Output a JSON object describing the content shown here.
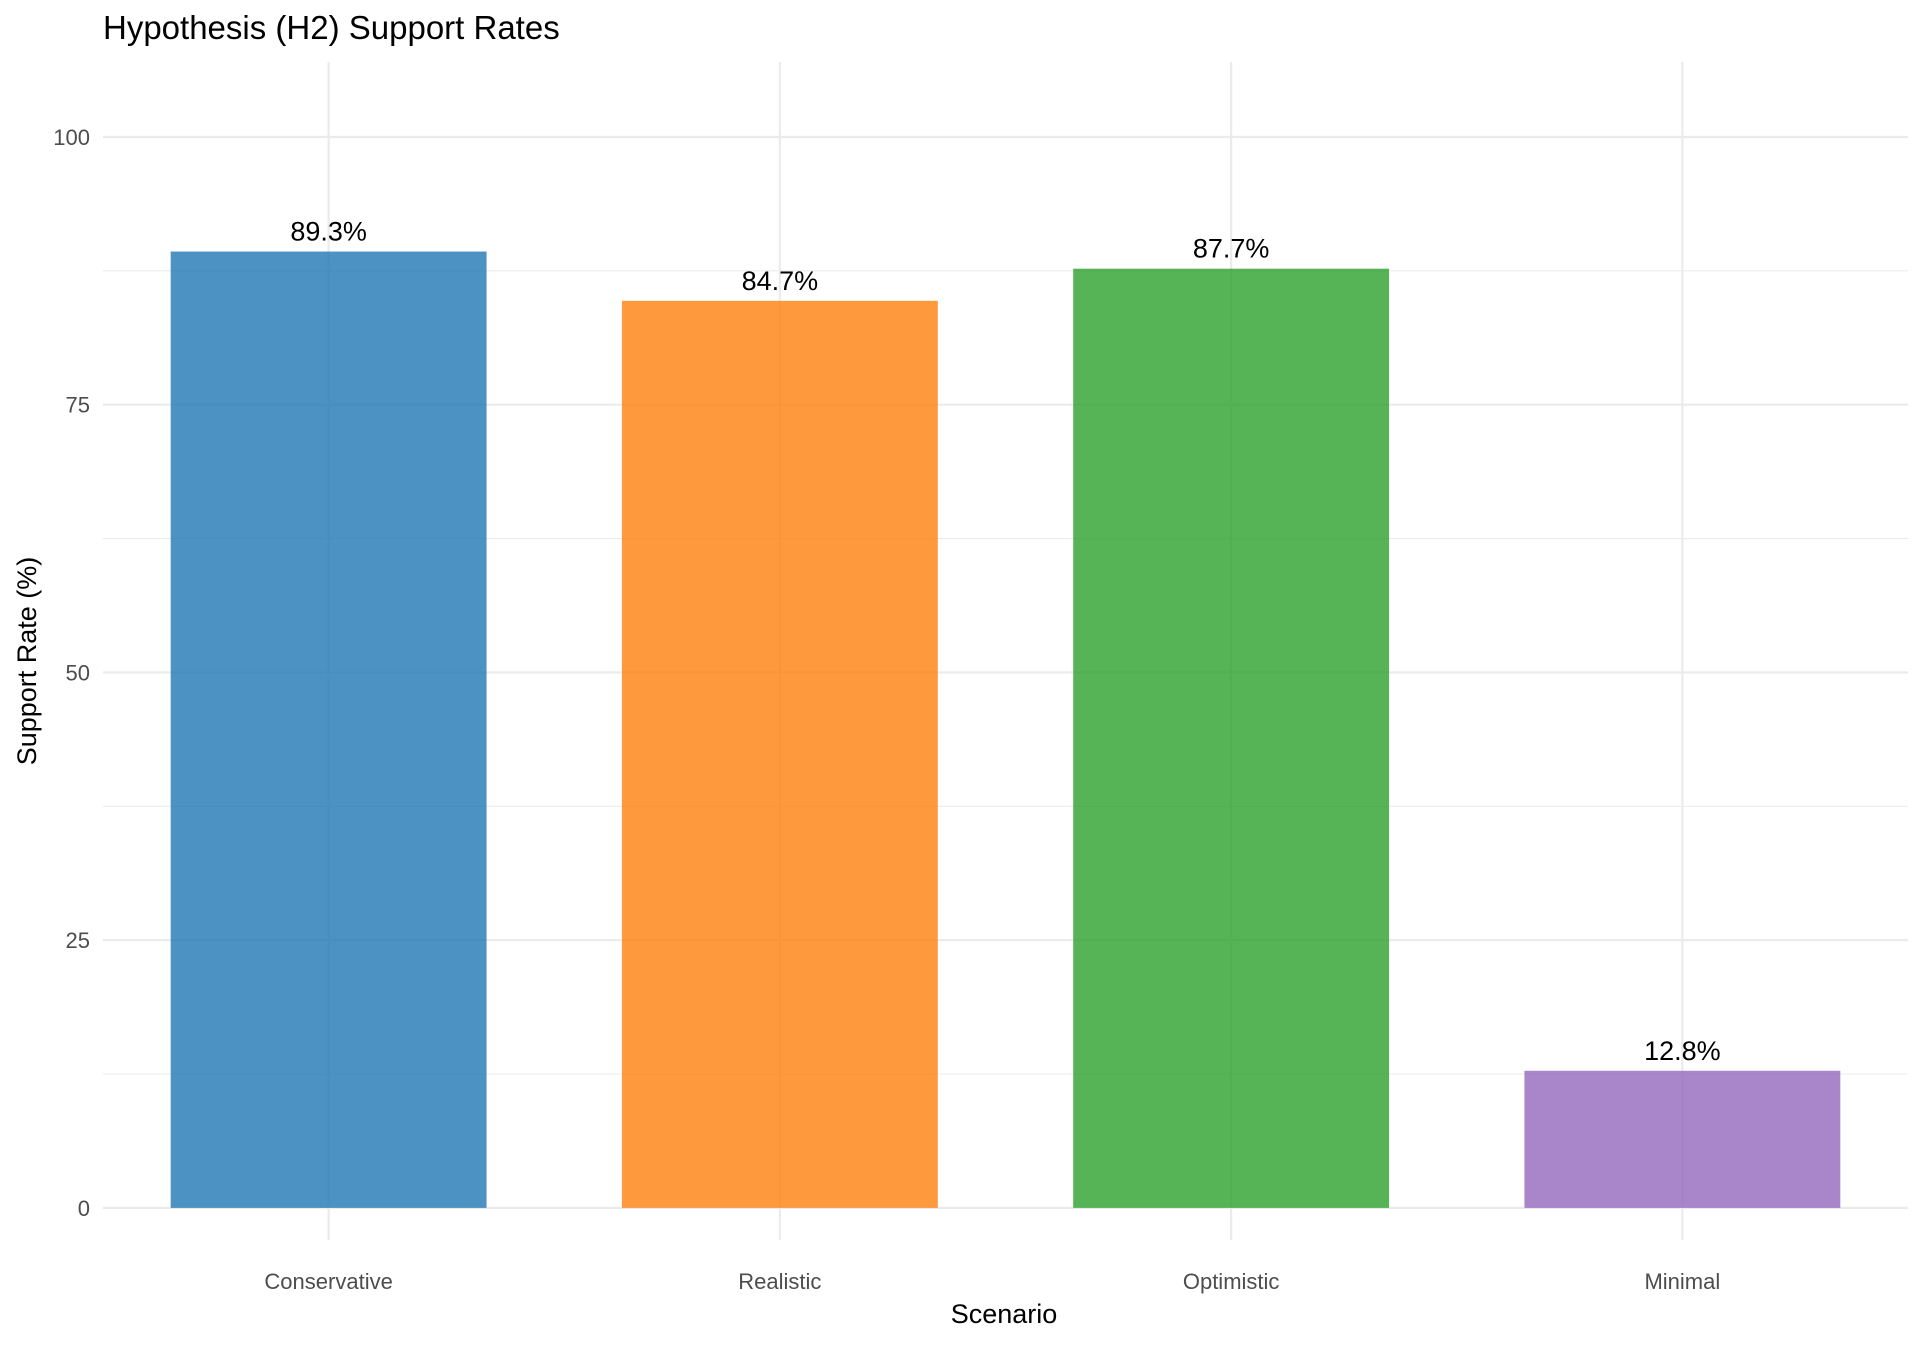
{
  "chart_data": {
    "type": "bar",
    "title": "Hypothesis (H2) Support Rates",
    "xlabel": "Scenario",
    "ylabel": "Support Rate (%)",
    "categories": [
      "Conservative",
      "Realistic",
      "Optimistic",
      "Minimal"
    ],
    "values": [
      89.3,
      84.7,
      87.7,
      12.8
    ],
    "data_labels": [
      "89.3%",
      "84.7%",
      "87.7%",
      "12.8%"
    ],
    "colors": [
      "#1f77b4",
      "#ff7f0e",
      "#2ca02c",
      "#9467bd"
    ],
    "bar_opacity": 0.8,
    "ylim": [
      -3,
      107
    ],
    "yticks": [
      0,
      25,
      50,
      75,
      100
    ],
    "ytick_labels": [
      "0",
      "25",
      "50",
      "75",
      "100"
    ],
    "y_minor_ticks": [
      12.5,
      37.5,
      62.5,
      87.5
    ],
    "grid": true,
    "legend": "none",
    "theme": "minimal"
  }
}
